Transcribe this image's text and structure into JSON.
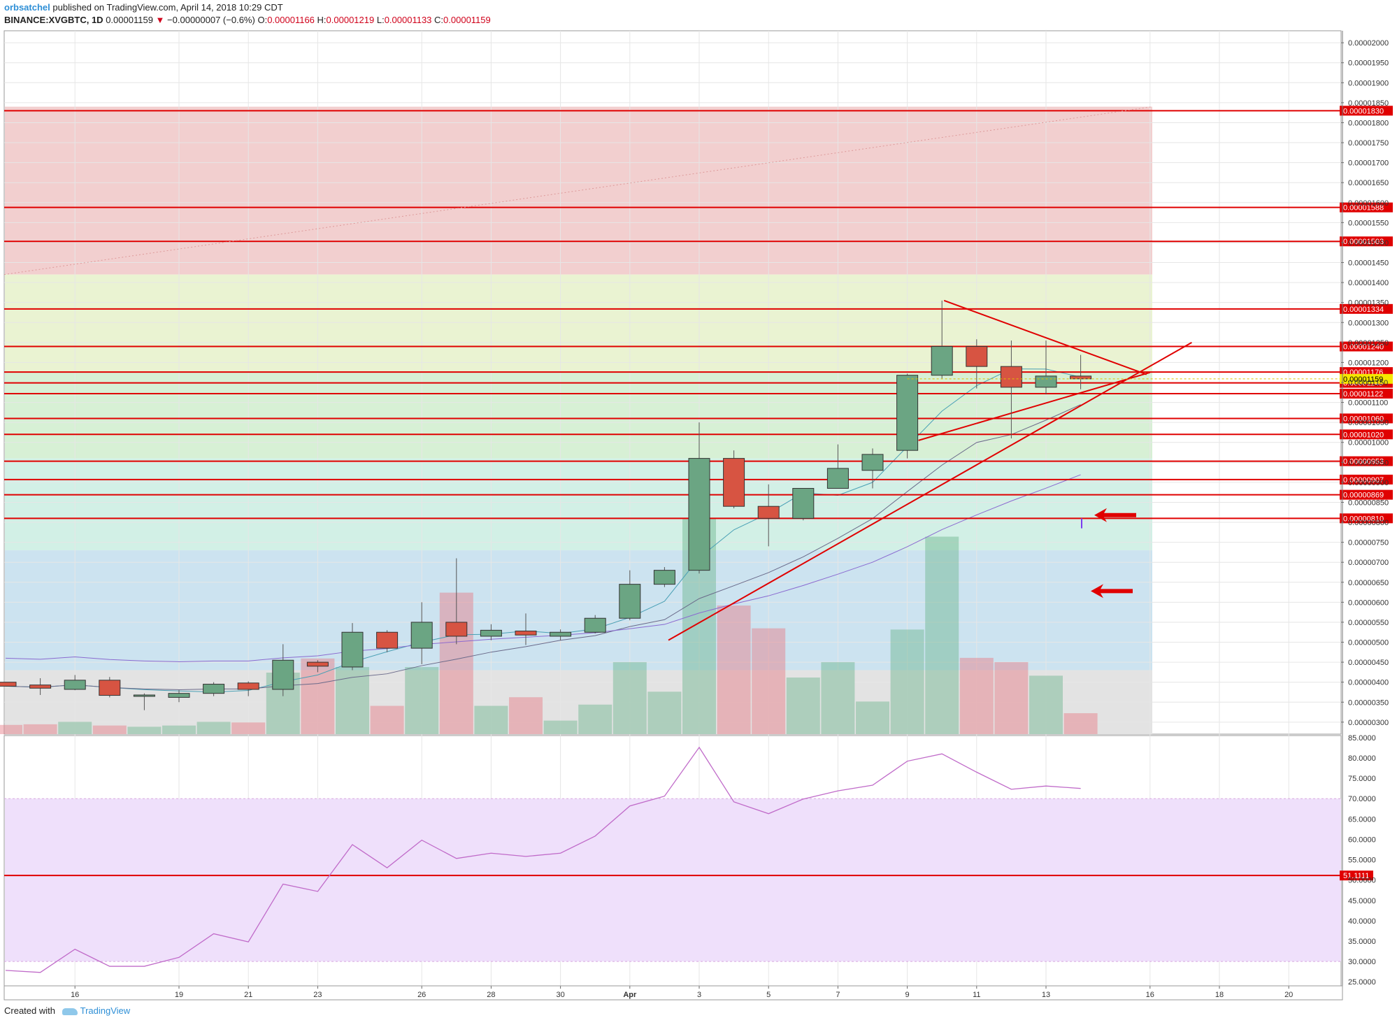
{
  "header": {
    "author": "orbsatchel",
    "published": "published on TradingView.com, April 14, 2018 10:29 CDT",
    "symbol": "BINANCE:XVGBTC, 1D",
    "last": "0.00001159",
    "change_arrow": "▼",
    "change": "−0.00000007 (−0.6%)",
    "o_label": "O:",
    "o_val": "0.00001166",
    "h_label": "H:",
    "h_val": "0.00001219",
    "l_label": "L:",
    "l_val": "0.00001133",
    "c_label": "C:",
    "c_val": "0.00001159"
  },
  "footer": {
    "created_with": "Created with",
    "brand": "TradingView"
  },
  "colors": {
    "up": "#6ba583",
    "down": "#d75442",
    "line_red": "#e00000",
    "zone_red": "#f2cfcf",
    "zone_yellow": "#eaf3d2",
    "zone_green": "#d7f0d5",
    "zone_teal": "#d2f0e6",
    "zone_blue": "#cce3f0",
    "zone_gray": "#e3e3e3",
    "rsi_band": "#efe0fb",
    "rsi_line": "#c06bc9"
  },
  "chart_data": [
    {
      "type": "candlestick",
      "units": "BTC",
      "x_ticks": [
        "16",
        "19",
        "21",
        "23",
        "26",
        "28",
        "30",
        "Apr",
        "3",
        "5",
        "7",
        "9",
        "11",
        "13",
        "16",
        "18",
        "20"
      ],
      "y_ticks": [
        "0.00002000",
        "0.00001950",
        "0.00001900",
        "0.00001850",
        "0.00001800",
        "0.00001750",
        "0.00001700",
        "0.00001650",
        "0.00001600",
        "0.00001550",
        "0.00001500",
        "0.00001450",
        "0.00001400",
        "0.00001350",
        "0.00001300",
        "0.00001250",
        "0.00001200",
        "0.00001150",
        "0.00001100",
        "0.00001050",
        "0.00001000",
        "0.00000950",
        "0.00000900",
        "0.00000850",
        "0.00000800",
        "0.00000750",
        "0.00000700",
        "0.00000650",
        "0.00000600",
        "0.00000550",
        "0.00000500",
        "0.00000450",
        "0.00000400",
        "0.00000350",
        "0.00000300"
      ],
      "ylim": [
        2.7e-06,
        2.03e-05
      ],
      "candles": [
        {
          "d": "Mar 14",
          "o": 4e-06,
          "h": 4e-06,
          "l": 3.9e-06,
          "c": 3.9e-06
        },
        {
          "d": "Mar 15",
          "o": 3.93e-06,
          "h": 4.1e-06,
          "l": 3.68e-06,
          "c": 3.85e-06
        },
        {
          "d": "Mar 16",
          "o": 3.82e-06,
          "h": 4.18e-06,
          "l": 3.8e-06,
          "c": 4.05e-06
        },
        {
          "d": "Mar 17",
          "o": 4.05e-06,
          "h": 4.13e-06,
          "l": 3.62e-06,
          "c": 3.67e-06
        },
        {
          "d": "Mar 18",
          "o": 3.65e-06,
          "h": 3.72e-06,
          "l": 3.3e-06,
          "c": 3.68e-06
        },
        {
          "d": "Mar 19",
          "o": 3.62e-06,
          "h": 3.8e-06,
          "l": 3.5e-06,
          "c": 3.72e-06
        },
        {
          "d": "Mar 20",
          "o": 3.72e-06,
          "h": 4e-06,
          "l": 3.65e-06,
          "c": 3.95e-06
        },
        {
          "d": "Mar 21",
          "o": 3.98e-06,
          "h": 4.02e-06,
          "l": 3.65e-06,
          "c": 3.82e-06
        },
        {
          "d": "Mar 22",
          "o": 3.82e-06,
          "h": 4.95e-06,
          "l": 3.65e-06,
          "c": 4.55e-06
        },
        {
          "d": "Mar 23",
          "o": 4.5e-06,
          "h": 4.55e-06,
          "l": 4.25e-06,
          "c": 4.4e-06
        },
        {
          "d": "Mar 24",
          "o": 4.38e-06,
          "h": 5.48e-06,
          "l": 4.3e-06,
          "c": 5.25e-06
        },
        {
          "d": "Mar 25",
          "o": 5.25e-06,
          "h": 5.3e-06,
          "l": 4.75e-06,
          "c": 4.85e-06
        },
        {
          "d": "Mar 26",
          "o": 4.85e-06,
          "h": 6e-06,
          "l": 4.45e-06,
          "c": 5.5e-06
        },
        {
          "d": "Mar 27",
          "o": 5.5e-06,
          "h": 7.1e-06,
          "l": 4.95e-06,
          "c": 5.15e-06
        },
        {
          "d": "Mar 28",
          "o": 5.15e-06,
          "h": 5.45e-06,
          "l": 5.05e-06,
          "c": 5.3e-06
        },
        {
          "d": "Mar 29",
          "o": 5.28e-06,
          "h": 5.72e-06,
          "l": 4.93e-06,
          "c": 5.18e-06
        },
        {
          "d": "Mar 30",
          "o": 5.15e-06,
          "h": 5.32e-06,
          "l": 5.05e-06,
          "c": 5.25e-06
        },
        {
          "d": "Mar 31",
          "o": 5.25e-06,
          "h": 5.68e-06,
          "l": 5.22e-06,
          "c": 5.6e-06
        },
        {
          "d": "Apr 1",
          "o": 5.6e-06,
          "h": 6.8e-06,
          "l": 5.55e-06,
          "c": 6.45e-06
        },
        {
          "d": "Apr 2",
          "o": 6.45e-06,
          "h": 6.88e-06,
          "l": 6.38e-06,
          "c": 6.8e-06
        },
        {
          "d": "Apr 3",
          "o": 6.8e-06,
          "h": 1.05e-05,
          "l": 6.72e-06,
          "c": 9.6e-06
        },
        {
          "d": "Apr 4",
          "o": 9.6e-06,
          "h": 9.8e-06,
          "l": 8.35e-06,
          "c": 8.4e-06
        },
        {
          "d": "Apr 5",
          "o": 8.4e-06,
          "h": 8.95e-06,
          "l": 7.4e-06,
          "c": 8.1e-06
        },
        {
          "d": "Apr 6",
          "o": 8.1e-06,
          "h": 8.85e-06,
          "l": 8.05e-06,
          "c": 8.85e-06
        },
        {
          "d": "Apr 7",
          "o": 8.85e-06,
          "h": 9.95e-06,
          "l": 8.85e-06,
          "c": 9.35e-06
        },
        {
          "d": "Apr 8",
          "o": 9.3e-06,
          "h": 9.85e-06,
          "l": 8.85e-06,
          "c": 9.7e-06
        },
        {
          "d": "Apr 9",
          "o": 9.8e-06,
          "h": 1.172e-05,
          "l": 9.6e-06,
          "c": 1.168e-05
        },
        {
          "d": "Apr 10",
          "o": 1.168e-05,
          "h": 1.355e-05,
          "l": 1.16e-05,
          "c": 1.24e-05
        },
        {
          "d": "Apr 11",
          "o": 1.24e-05,
          "h": 1.258e-05,
          "l": 1.135e-05,
          "c": 1.19e-05
        },
        {
          "d": "Apr 12",
          "o": 1.19e-05,
          "h": 1.255e-05,
          "l": 1.01e-05,
          "c": 1.138e-05
        },
        {
          "d": "Apr 13",
          "o": 1.138e-05,
          "h": 1.255e-05,
          "l": 1.12e-05,
          "c": 1.166e-05
        },
        {
          "d": "Apr 14",
          "o": 1.166e-05,
          "h": 1.219e-05,
          "l": 1.133e-05,
          "c": 1.159e-05
        }
      ],
      "volume": [
        {
          "v": 0.15,
          "up": false
        },
        {
          "v": 0.16,
          "up": false
        },
        {
          "v": 0.2,
          "up": true
        },
        {
          "v": 0.14,
          "up": false
        },
        {
          "v": 0.12,
          "up": true
        },
        {
          "v": 0.14,
          "up": true
        },
        {
          "v": 0.2,
          "up": true
        },
        {
          "v": 0.19,
          "up": false
        },
        {
          "v": 1.0,
          "up": true
        },
        {
          "v": 1.23,
          "up": false
        },
        {
          "v": 1.09,
          "up": true
        },
        {
          "v": 0.46,
          "up": false
        },
        {
          "v": 1.09,
          "up": true
        },
        {
          "v": 2.3,
          "up": false
        },
        {
          "v": 0.46,
          "up": true
        },
        {
          "v": 0.6,
          "up": false
        },
        {
          "v": 0.22,
          "up": true
        },
        {
          "v": 0.48,
          "up": true
        },
        {
          "v": 1.17,
          "up": true
        },
        {
          "v": 0.69,
          "up": true
        },
        {
          "v": 3.5,
          "up": true
        },
        {
          "v": 2.09,
          "up": false
        },
        {
          "v": 1.72,
          "up": false
        },
        {
          "v": 0.92,
          "up": true
        },
        {
          "v": 1.17,
          "up": true
        },
        {
          "v": 0.53,
          "up": true
        },
        {
          "v": 1.7,
          "up": true
        },
        {
          "v": 3.21,
          "up": true
        },
        {
          "v": 1.24,
          "up": false
        },
        {
          "v": 1.17,
          "up": false
        },
        {
          "v": 0.95,
          "up": true
        },
        {
          "v": 0.34,
          "up": false
        }
      ],
      "hlines": [
        {
          "value": 1.83e-05,
          "label": "0.00001830"
        },
        {
          "value": 1.588e-05,
          "label": "0.00001588"
        },
        {
          "value": 1.503e-05,
          "label": "0.00001503"
        },
        {
          "value": 1.334e-05,
          "label": "0.00001334"
        },
        {
          "value": 1.24e-05,
          "label": "0.00001240"
        },
        {
          "value": 1.176e-05,
          "label": "0.00001176"
        },
        {
          "value": 1.149e-05,
          "label": "0.00001149"
        },
        {
          "value": 1.122e-05,
          "label": "0.00001122"
        },
        {
          "value": 1.06e-05,
          "label": "0.00001060"
        },
        {
          "value": 1.02e-05,
          "label": "0.00001020"
        },
        {
          "value": 9.53e-06,
          "label": "0.00000953"
        },
        {
          "value": 9.07e-06,
          "label": "0.00000907"
        },
        {
          "value": 8.69e-06,
          "label": "0.00000869"
        },
        {
          "value": 8.1e-06,
          "label": "0.00000810"
        }
      ],
      "last_price_label": "0.00001159",
      "last_price": 1.159e-05,
      "zones": [
        {
          "from": 1.84e-05,
          "to": 1.42e-05,
          "color": "zone_red"
        },
        {
          "from": 1.42e-05,
          "to": 1.175e-05,
          "color": "zone_yellow"
        },
        {
          "from": 1.175e-05,
          "to": 9.6e-06,
          "color": "zone_green"
        },
        {
          "from": 9.6e-06,
          "to": 7.3e-06,
          "color": "zone_teal"
        },
        {
          "from": 7.3e-06,
          "to": 4.3e-06,
          "color": "zone_blue"
        },
        {
          "from": 4.3e-06,
          "to": 2.7e-06,
          "color": "zone_gray"
        }
      ],
      "grid": true,
      "legend": "none"
    },
    {
      "type": "line",
      "name": "",
      "y_ticks": [
        "85.0000",
        "80.0000",
        "75.0000",
        "70.0000",
        "65.0000",
        "60.0000",
        "55.0000",
        "50.0000",
        "45.0000",
        "40.0000",
        "35.0000",
        "30.0000",
        "25.0000"
      ],
      "ylim": [
        24,
        85.5
      ],
      "band": [
        30,
        70
      ],
      "hline": {
        "value": 51.1111,
        "label": "51.1111"
      },
      "values": [
        27.8,
        27.3,
        33,
        28.8,
        28.8,
        31,
        36.8,
        34.8,
        49,
        47.2,
        58.7,
        53,
        59.8,
        55.3,
        56.6,
        55.8,
        56.6,
        60.8,
        68.2,
        70.6,
        82.6,
        69.2,
        66.3,
        69.9,
        71.9,
        73.3,
        79.2,
        81,
        76.5,
        72.3,
        73.1,
        72.5
      ]
    }
  ]
}
